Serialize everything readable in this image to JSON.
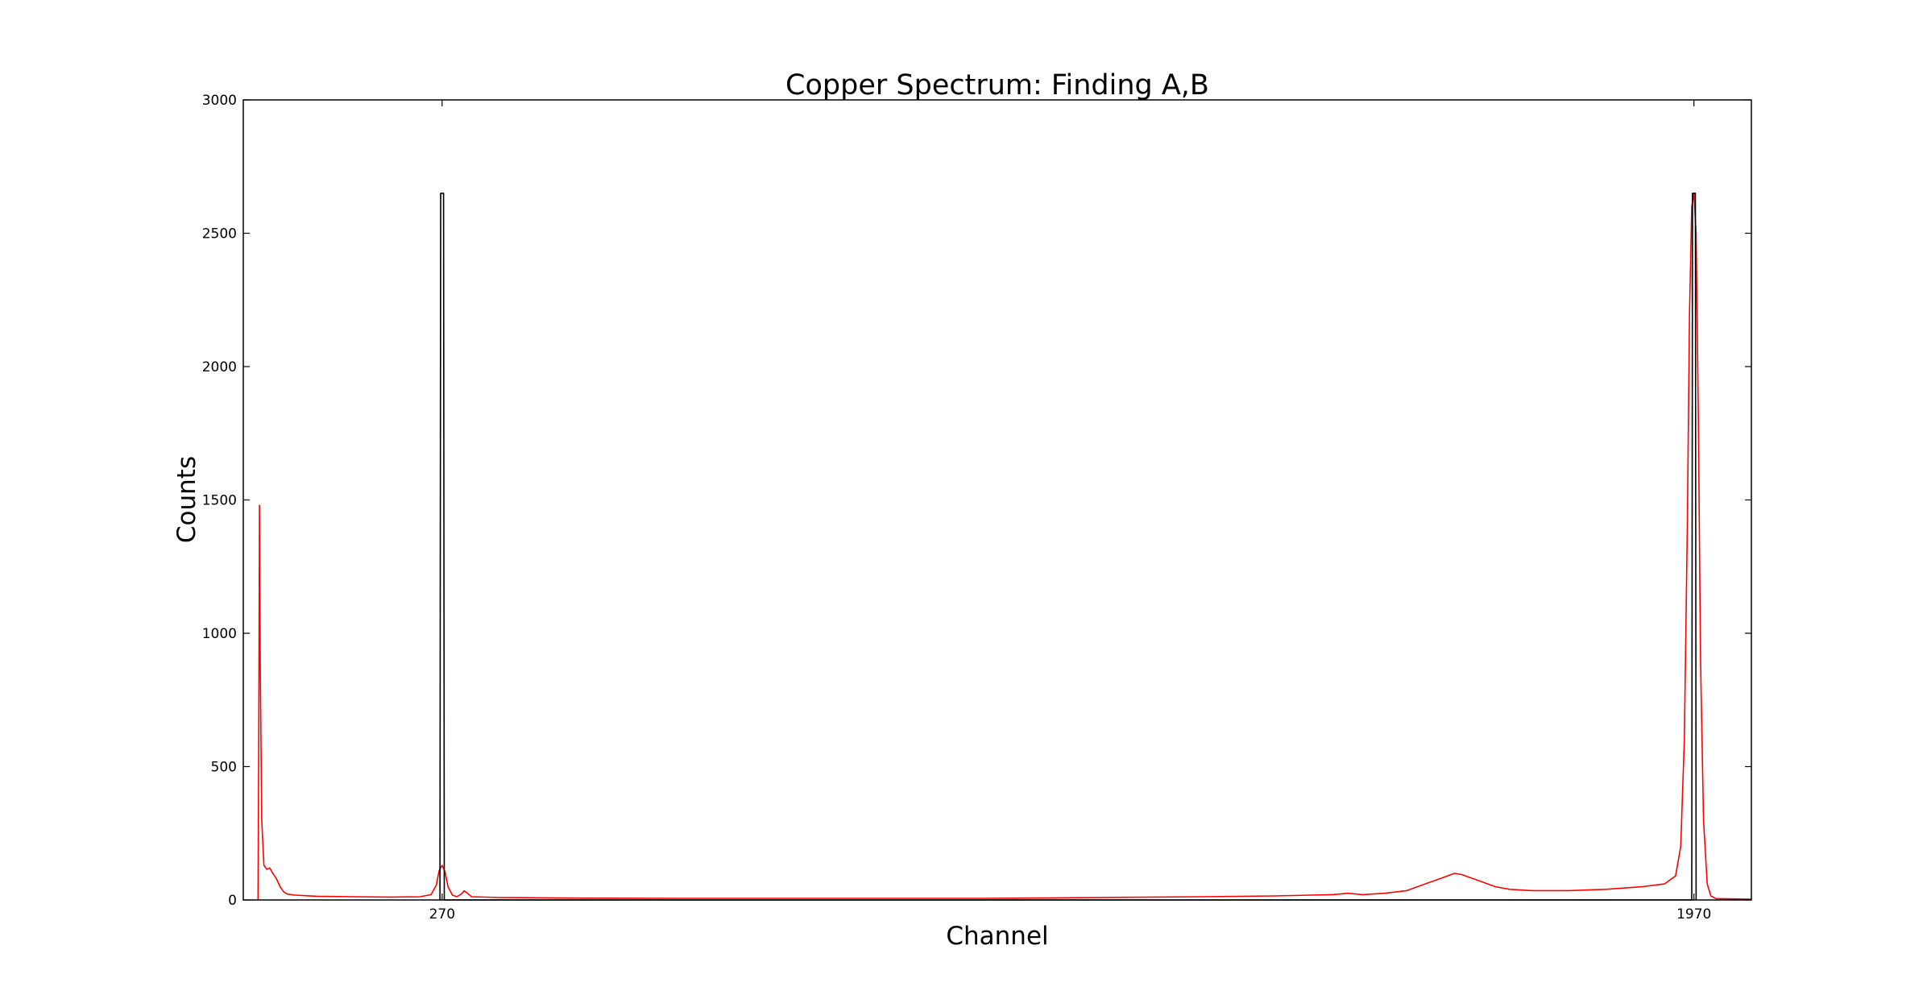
{
  "chart_data": {
    "type": "line",
    "title": "Copper Spectrum: Finding A,B",
    "xlabel": "Channel",
    "ylabel": "Counts",
    "xlim": [
      0,
      2048
    ],
    "ylim": [
      0,
      3000
    ],
    "yticks": [
      0,
      500,
      1000,
      1500,
      2000,
      2500,
      3000
    ],
    "xticks": [
      270,
      1970
    ],
    "grid": false,
    "legend": "none",
    "series": [
      {
        "color": "#ff0000",
        "points": [
          [
            20,
            0
          ],
          [
            21,
            600
          ],
          [
            22,
            1480
          ],
          [
            23,
            900
          ],
          [
            25,
            300
          ],
          [
            28,
            130
          ],
          [
            32,
            115
          ],
          [
            36,
            120
          ],
          [
            40,
            100
          ],
          [
            45,
            80
          ],
          [
            50,
            50
          ],
          [
            55,
            30
          ],
          [
            60,
            22
          ],
          [
            70,
            18
          ],
          [
            100,
            14
          ],
          [
            150,
            12
          ],
          [
            200,
            11
          ],
          [
            240,
            12
          ],
          [
            255,
            20
          ],
          [
            262,
            55
          ],
          [
            266,
            110
          ],
          [
            270,
            130
          ],
          [
            274,
            105
          ],
          [
            278,
            50
          ],
          [
            284,
            18
          ],
          [
            290,
            12
          ],
          [
            296,
            22
          ],
          [
            300,
            34
          ],
          [
            304,
            26
          ],
          [
            310,
            12
          ],
          [
            350,
            9
          ],
          [
            450,
            7
          ],
          [
            600,
            6
          ],
          [
            800,
            6
          ],
          [
            1000,
            6
          ],
          [
            1100,
            8
          ],
          [
            1200,
            10
          ],
          [
            1300,
            12
          ],
          [
            1400,
            15
          ],
          [
            1450,
            18
          ],
          [
            1480,
            20
          ],
          [
            1500,
            25
          ],
          [
            1520,
            20
          ],
          [
            1550,
            25
          ],
          [
            1580,
            35
          ],
          [
            1600,
            55
          ],
          [
            1620,
            75
          ],
          [
            1635,
            90
          ],
          [
            1645,
            100
          ],
          [
            1655,
            95
          ],
          [
            1665,
            85
          ],
          [
            1680,
            70
          ],
          [
            1700,
            50
          ],
          [
            1720,
            40
          ],
          [
            1750,
            35
          ],
          [
            1800,
            35
          ],
          [
            1850,
            40
          ],
          [
            1900,
            50
          ],
          [
            1930,
            60
          ],
          [
            1945,
            90
          ],
          [
            1952,
            200
          ],
          [
            1957,
            600
          ],
          [
            1961,
            1400
          ],
          [
            1964,
            2200
          ],
          [
            1967,
            2600
          ],
          [
            1970,
            2650
          ],
          [
            1973,
            2500
          ],
          [
            1976,
            1800
          ],
          [
            1979,
            900
          ],
          [
            1983,
            300
          ],
          [
            1988,
            60
          ],
          [
            1993,
            15
          ],
          [
            2000,
            5
          ],
          [
            2048,
            3
          ]
        ]
      },
      {
        "color": "#000000",
        "points": [
          [
            267,
            0
          ],
          [
            268,
            2650
          ],
          [
            272,
            2650
          ],
          [
            273,
            0
          ],
          [
            1967,
            0
          ],
          [
            1968,
            2650
          ],
          [
            1972,
            2650
          ],
          [
            1973,
            0
          ]
        ]
      }
    ]
  }
}
